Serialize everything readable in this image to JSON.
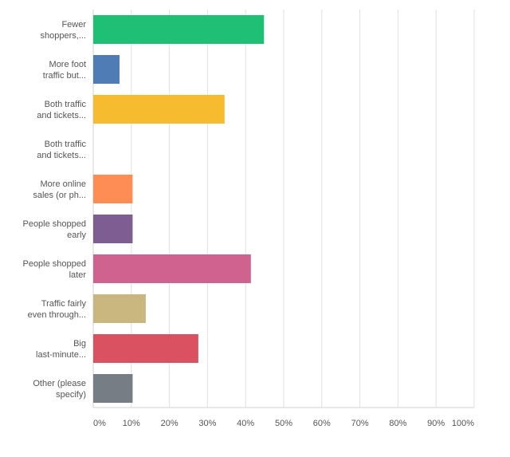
{
  "chart_data": {
    "type": "bar",
    "orientation": "horizontal",
    "title": "",
    "xlabel": "",
    "ylabel": "",
    "xlim": [
      0,
      100
    ],
    "grid": true,
    "legend": "none",
    "categories": [
      [
        "Fewer",
        "shoppers,..."
      ],
      [
        "More foot",
        "traffic but..."
      ],
      [
        "Both traffic",
        "and tickets..."
      ],
      [
        "Both traffic",
        "and tickets..."
      ],
      [
        "More online",
        "sales (or ph..."
      ],
      [
        "People shopped",
        "early"
      ],
      [
        "People shopped",
        "later"
      ],
      [
        "Traffic fairly",
        "even through..."
      ],
      [
        "Big",
        "last-minute..."
      ],
      [
        "Other (please",
        "specify)"
      ]
    ],
    "values": [
      44.83,
      6.9,
      34.48,
      0,
      10.34,
      10.34,
      41.38,
      13.79,
      27.59,
      10.34
    ],
    "colors": [
      "#1fbf75",
      "#507cb6",
      "#f6bb2e",
      "#6fa5dc",
      "#fd8d54",
      "#7e5e92",
      "#d0628f",
      "#c9b77f",
      "#da5262",
      "#767d85"
    ],
    "tick_labels": [
      "0%",
      "10%",
      "20%",
      "30%",
      "40%",
      "50%",
      "60%",
      "70%",
      "80%",
      "90%",
      "100%"
    ]
  }
}
